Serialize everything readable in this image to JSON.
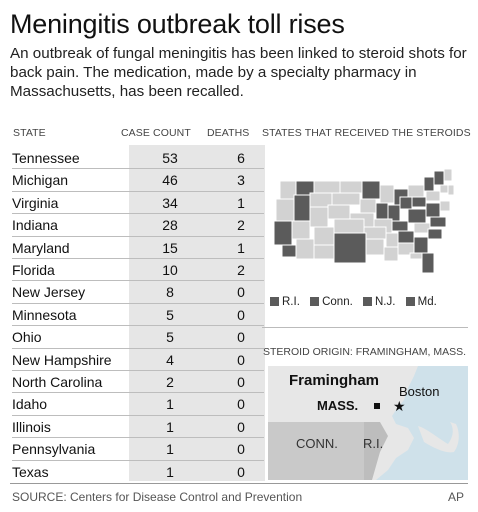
{
  "header": {
    "title": "Meningitis outbreak toll rises",
    "subtitle": "An outbreak of fungal meningitis has been linked to steroid shots for back pain. The medication, made by a specialty pharmacy in Massachusetts, has been recalled."
  },
  "table": {
    "col_state": "STATE",
    "col_cases": "CASE COUNT",
    "col_deaths": "DEATHS"
  },
  "chart_data": {
    "type": "table",
    "columns": [
      "STATE",
      "CASE COUNT",
      "DEATHS"
    ],
    "rows": [
      {
        "state": "Tennessee",
        "cases": "53",
        "deaths": "6"
      },
      {
        "state": "Michigan",
        "cases": "46",
        "deaths": "3"
      },
      {
        "state": "Virginia",
        "cases": "34",
        "deaths": "1"
      },
      {
        "state": "Indiana",
        "cases": "28",
        "deaths": "2"
      },
      {
        "state": "Maryland",
        "cases": "15",
        "deaths": "1"
      },
      {
        "state": "Florida",
        "cases": "10",
        "deaths": "2"
      },
      {
        "state": "New Jersey",
        "cases": "8",
        "deaths": "0"
      },
      {
        "state": "Minnesota",
        "cases": "5",
        "deaths": "0"
      },
      {
        "state": "Ohio",
        "cases": "5",
        "deaths": "0"
      },
      {
        "state": "New Hampshire",
        "cases": "4",
        "deaths": "0"
      },
      {
        "state": "North Carolina",
        "cases": "2",
        "deaths": "0"
      },
      {
        "state": "Idaho",
        "cases": "1",
        "deaths": "0"
      },
      {
        "state": "Illinois",
        "cases": "1",
        "deaths": "0"
      },
      {
        "state": "Pennsylvania",
        "cases": "1",
        "deaths": "0"
      },
      {
        "state": "Texas",
        "cases": "1",
        "deaths": "0"
      }
    ]
  },
  "map": {
    "title": "STATES THAT RECEIVED THE STEROIDS",
    "colors": {
      "received": "#5b5b5b",
      "other": "#d2d2d2",
      "outline": "#ffffff"
    },
    "legend": [
      "R.I.",
      "Conn.",
      "N.J.",
      "Md."
    ]
  },
  "origin": {
    "title": "STEROID ORIGIN: FRAMINGHAM, MASS.",
    "framingham": "Framingham",
    "boston": "Boston",
    "mass": "MASS.",
    "conn": "CONN.",
    "ri": "R.I."
  },
  "footer": {
    "source": "SOURCE: Centers for Disease Control and Prevention",
    "credit": "AP"
  }
}
